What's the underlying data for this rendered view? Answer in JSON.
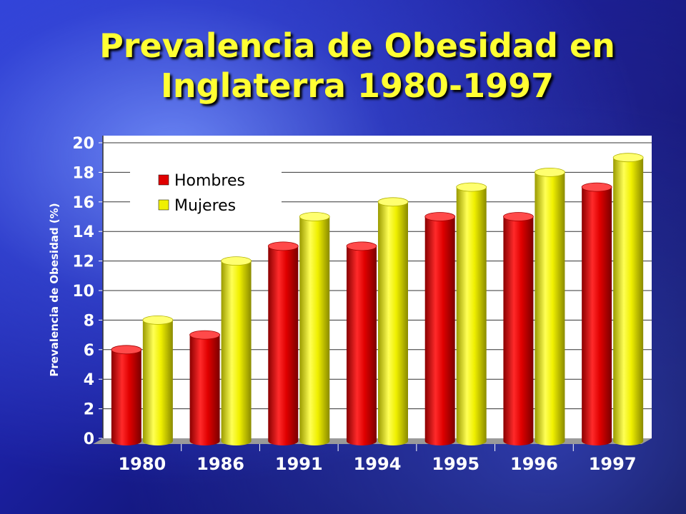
{
  "slide": {
    "title_line1": "Prevalencia de Obesidad en",
    "title_line2": "Inglaterra 1980-1997"
  },
  "chart_data": {
    "type": "bar",
    "categories": [
      "1980",
      "1986",
      "1991",
      "1994",
      "1995",
      "1996",
      "1997"
    ],
    "series": [
      {
        "name": "Hombres",
        "values": [
          6,
          7,
          13,
          13,
          15,
          15,
          17
        ],
        "color": "#e00000"
      },
      {
        "name": "Mujeres",
        "values": [
          8,
          12,
          15,
          16,
          17,
          18,
          19
        ],
        "color": "#f0f000"
      }
    ],
    "ylabel": "Prevalencia de Obesidad (%)",
    "ylim": [
      0,
      20
    ],
    "yticks": [
      "0",
      "2",
      "4",
      "6",
      "8",
      "10",
      "12",
      "14",
      "16",
      "18",
      "20"
    ],
    "grid": true,
    "legend_position": "top-left",
    "plot_background": "#ffffff",
    "style": "3d-cylinder"
  }
}
